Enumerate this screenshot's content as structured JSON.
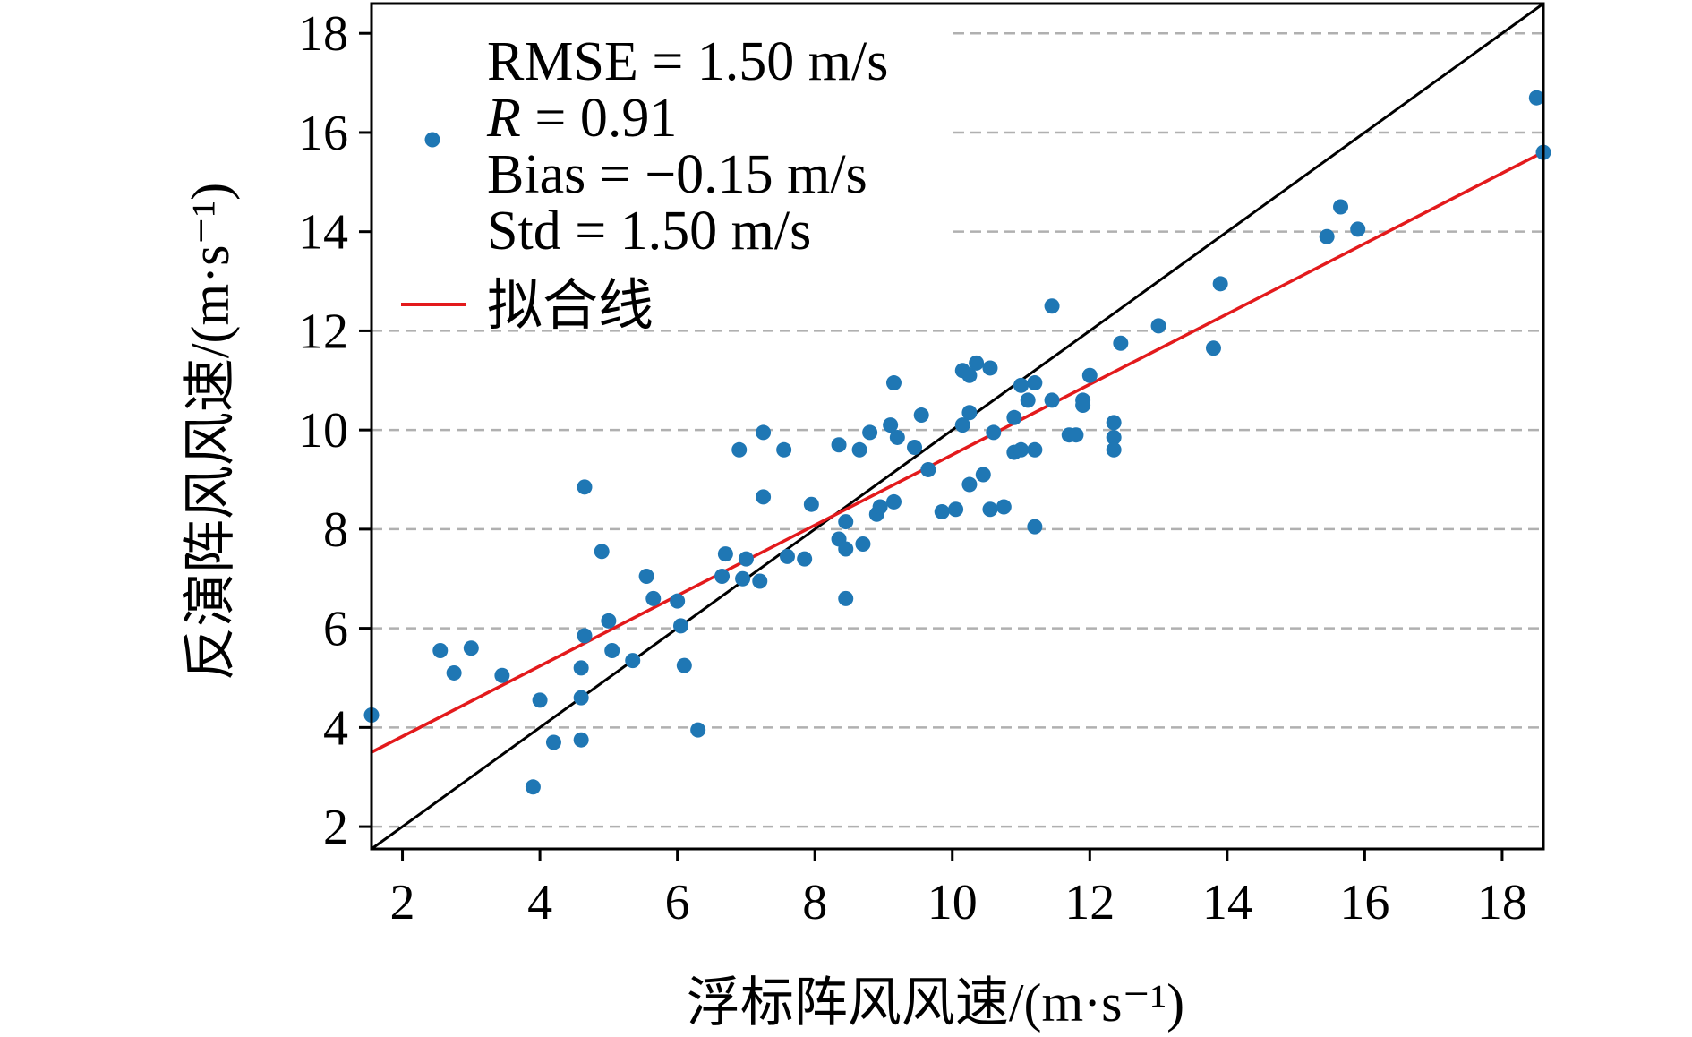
{
  "chart_data": {
    "type": "scatter",
    "xlabel": "浮标阵风风速/(m·s⁻¹)",
    "ylabel": "反演阵风风速/(m·s⁻¹)",
    "xlim": [
      1.55,
      18.6
    ],
    "ylim": [
      1.55,
      18.6
    ],
    "xticks": [
      "2",
      "4",
      "6",
      "8",
      "10",
      "12",
      "14",
      "16",
      "18"
    ],
    "yticks": [
      "2",
      "4",
      "6",
      "8",
      "10",
      "12",
      "14",
      "16",
      "18"
    ],
    "grid": {
      "axis": "y",
      "style": "dashed",
      "color": "#b0b0b0"
    },
    "legend_placement": "upper-left",
    "colors": {
      "points": "#1f77b4",
      "fit_line": "#e31a1c",
      "reference_line": "#000000"
    },
    "stats": {
      "rmse": "RMSE = 1.50 m/s",
      "r_symbol": "R",
      "r_value": " = 0.91",
      "bias": "Bias = −0.15 m/s",
      "std": "Std = 1.50 m/s"
    },
    "fit_line": {
      "label": "拟合线",
      "slope": 0.71,
      "intercept": 2.4
    },
    "reference_line": {
      "slope": 1,
      "intercept": 0
    },
    "points": [
      [
        1.55,
        4.25
      ],
      [
        2.55,
        5.55
      ],
      [
        2.75,
        5.1
      ],
      [
        3.0,
        5.6
      ],
      [
        3.45,
        5.05
      ],
      [
        3.9,
        2.8
      ],
      [
        4.0,
        4.55
      ],
      [
        4.2,
        3.7
      ],
      [
        4.6,
        3.75
      ],
      [
        4.6,
        4.6
      ],
      [
        4.6,
        5.2
      ],
      [
        4.65,
        5.85
      ],
      [
        4.65,
        8.85
      ],
      [
        4.9,
        7.55
      ],
      [
        5.0,
        6.15
      ],
      [
        5.05,
        5.55
      ],
      [
        5.35,
        5.35
      ],
      [
        5.55,
        7.05
      ],
      [
        5.65,
        6.6
      ],
      [
        6.0,
        6.55
      ],
      [
        6.05,
        6.05
      ],
      [
        6.1,
        5.25
      ],
      [
        6.3,
        3.95
      ],
      [
        6.65,
        7.05
      ],
      [
        6.7,
        7.5
      ],
      [
        6.9,
        9.6
      ],
      [
        6.95,
        7.0
      ],
      [
        7.0,
        7.4
      ],
      [
        7.2,
        6.95
      ],
      [
        7.25,
        9.95
      ],
      [
        7.25,
        8.65
      ],
      [
        7.55,
        9.6
      ],
      [
        7.6,
        7.45
      ],
      [
        7.85,
        7.4
      ],
      [
        7.95,
        8.5
      ],
      [
        8.35,
        9.7
      ],
      [
        8.35,
        7.8
      ],
      [
        8.45,
        8.15
      ],
      [
        8.45,
        7.6
      ],
      [
        8.45,
        6.6
      ],
      [
        8.65,
        9.6
      ],
      [
        8.7,
        7.7
      ],
      [
        8.8,
        9.95
      ],
      [
        8.9,
        8.3
      ],
      [
        8.95,
        8.45
      ],
      [
        9.15,
        10.95
      ],
      [
        9.1,
        10.1
      ],
      [
        9.15,
        8.55
      ],
      [
        9.2,
        9.85
      ],
      [
        9.45,
        9.65
      ],
      [
        9.55,
        10.3
      ],
      [
        9.65,
        9.2
      ],
      [
        9.85,
        8.35
      ],
      [
        10.05,
        8.4
      ],
      [
        10.15,
        11.2
      ],
      [
        10.15,
        10.1
      ],
      [
        10.25,
        10.35
      ],
      [
        10.25,
        11.1
      ],
      [
        10.25,
        8.9
      ],
      [
        10.35,
        11.35
      ],
      [
        10.45,
        9.1
      ],
      [
        10.55,
        11.25
      ],
      [
        10.55,
        8.4
      ],
      [
        10.6,
        9.95
      ],
      [
        10.75,
        8.45
      ],
      [
        10.9,
        10.25
      ],
      [
        10.9,
        9.55
      ],
      [
        11.0,
        10.9
      ],
      [
        11.0,
        9.6
      ],
      [
        11.1,
        10.6
      ],
      [
        11.2,
        10.95
      ],
      [
        11.2,
        9.6
      ],
      [
        11.2,
        8.05
      ],
      [
        11.45,
        12.5
      ],
      [
        11.45,
        10.6
      ],
      [
        11.7,
        9.9
      ],
      [
        11.8,
        9.9
      ],
      [
        11.9,
        10.6
      ],
      [
        11.9,
        10.5
      ],
      [
        12.0,
        11.1
      ],
      [
        12.35,
        10.15
      ],
      [
        12.35,
        9.85
      ],
      [
        12.35,
        9.6
      ],
      [
        12.45,
        11.75
      ],
      [
        13.0,
        12.1
      ],
      [
        13.8,
        11.65
      ],
      [
        13.9,
        12.95
      ],
      [
        15.45,
        13.9
      ],
      [
        15.65,
        14.5
      ],
      [
        15.9,
        14.05
      ],
      [
        18.5,
        16.7
      ],
      [
        18.6,
        15.6
      ]
    ]
  }
}
